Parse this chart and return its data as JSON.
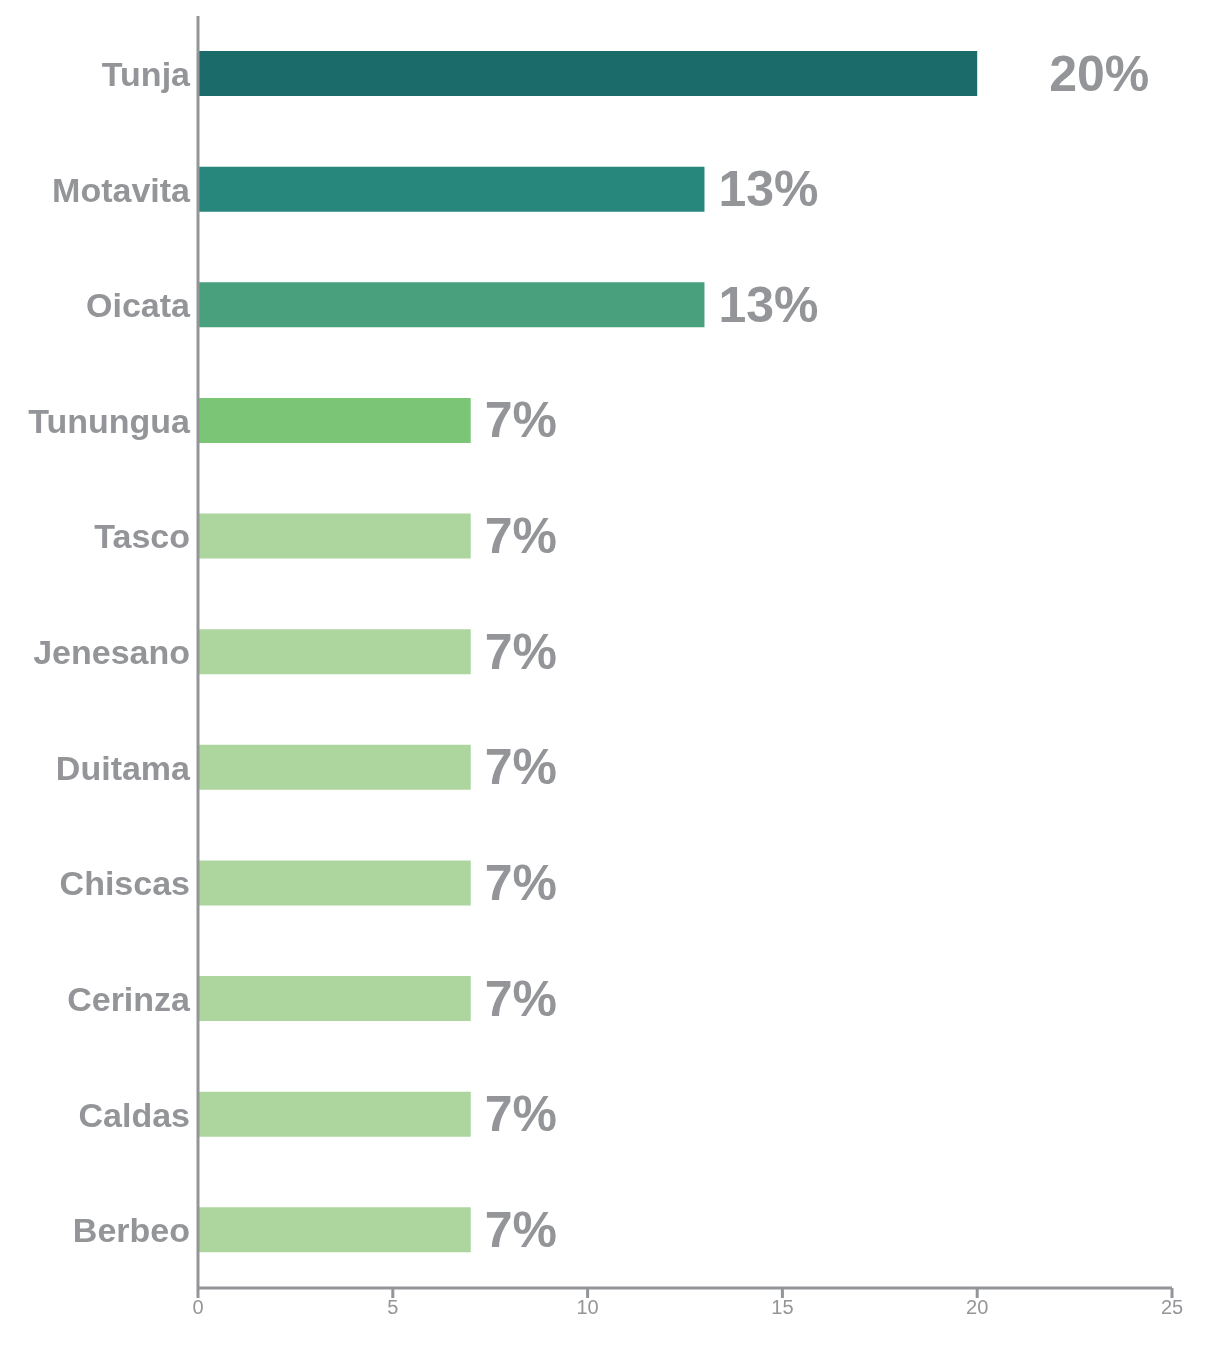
{
  "chart_data": {
    "type": "bar",
    "orientation": "horizontal",
    "categories": [
      "Tunja",
      "Motavita",
      "Oicata",
      "Tunungua",
      "Tasco",
      "Jenesano",
      "Duitama",
      "Chiscas",
      "Cerinza",
      "Caldas",
      "Berbeo"
    ],
    "values": [
      20,
      13,
      13,
      7,
      7,
      7,
      7,
      7,
      7,
      7,
      7
    ],
    "colors": [
      "#1b6b6b",
      "#27877c",
      "#48a07c",
      "#7bc576",
      "#acd69d",
      "#acd69d",
      "#acd69d",
      "#acd69d",
      "#acd69d",
      "#acd69d",
      "#acd69d"
    ],
    "value_labels": [
      "20%",
      "13%",
      "13%",
      "7%",
      "7%",
      "7%",
      "7%",
      "7%",
      "7%",
      "7%",
      "7%"
    ],
    "xlim": [
      0,
      25
    ],
    "xticks": [
      0,
      5,
      10,
      15,
      20,
      25
    ],
    "grid": false,
    "legend": false
  }
}
